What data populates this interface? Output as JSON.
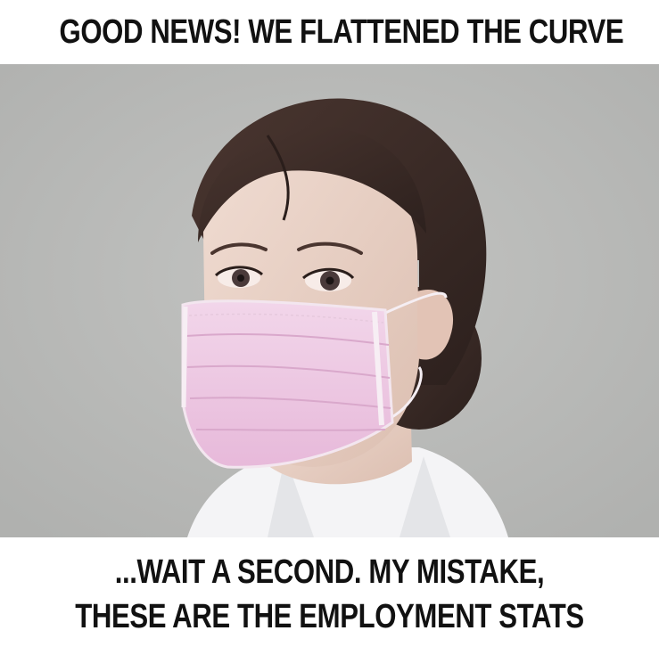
{
  "meme": {
    "top_caption": "GOOD NEWS!  WE FLATTENED THE CURVE",
    "bottom_caption_line1": "...WAIT A SECOND.  MY MISTAKE,",
    "bottom_caption_line2": "THESE ARE THE EMPLOYMENT STATS"
  },
  "photo": {
    "subject": "woman-wearing-pink-surgical-mask",
    "colors": {
      "background": "#babbb9",
      "hair": "#3a2b27",
      "skin": "#e9d2c6",
      "mask": "#ecc6e2",
      "collar": "#f7f7f8"
    }
  }
}
